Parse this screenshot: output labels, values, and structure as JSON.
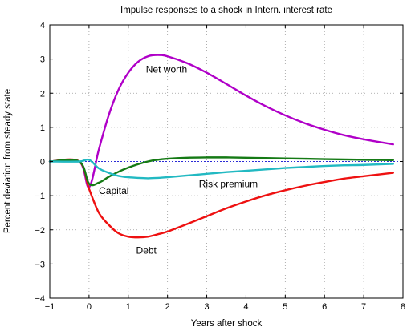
{
  "chart_data": {
    "type": "line",
    "title": "Impulse responses to a shock in Intern. interest rate",
    "xlabel": "Years after shock",
    "ylabel": "Percent deviation from steady state",
    "xlim": [
      -1,
      8
    ],
    "ylim": [
      -4,
      4
    ],
    "xticks": [
      -1,
      0,
      1,
      2,
      3,
      4,
      5,
      6,
      7,
      8
    ],
    "yticks": [
      -4,
      -3,
      -2,
      -1,
      0,
      1,
      2,
      3,
      4
    ],
    "grid": true,
    "baseline": {
      "y": 0,
      "color": "#2b2bd6",
      "style": "dotted"
    },
    "series": [
      {
        "name": "Net worth",
        "color": "#b000c8",
        "x": [
          -1,
          -0.25,
          0,
          0.25,
          0.5,
          0.75,
          1,
          1.25,
          1.5,
          1.75,
          2,
          2.5,
          3,
          3.5,
          4,
          4.5,
          5,
          5.5,
          6,
          6.5,
          7,
          7.75
        ],
        "y": [
          0,
          0,
          -0.75,
          0.35,
          1.35,
          2.1,
          2.6,
          2.92,
          3.08,
          3.12,
          3.08,
          2.88,
          2.6,
          2.27,
          1.93,
          1.62,
          1.35,
          1.12,
          0.93,
          0.77,
          0.65,
          0.5
        ]
      },
      {
        "name": "Debt",
        "color": "#ee1111",
        "x": [
          -1,
          -0.25,
          0,
          0.25,
          0.5,
          0.75,
          1,
          1.25,
          1.5,
          1.75,
          2,
          2.5,
          3,
          3.5,
          4,
          4.5,
          5,
          5.5,
          6,
          6.5,
          7,
          7.75
        ],
        "y": [
          0,
          0,
          -0.8,
          -1.5,
          -1.85,
          -2.1,
          -2.2,
          -2.22,
          -2.2,
          -2.13,
          -2.05,
          -1.83,
          -1.6,
          -1.37,
          -1.17,
          -0.99,
          -0.84,
          -0.71,
          -0.6,
          -0.5,
          -0.43,
          -0.33
        ]
      },
      {
        "name": "Capital",
        "color": "#157a15",
        "x": [
          -1,
          -0.25,
          0,
          0.25,
          0.5,
          0.75,
          1,
          1.25,
          1.5,
          1.75,
          2,
          2.5,
          3,
          3.5,
          4,
          4.5,
          5,
          5.5,
          6,
          6.5,
          7,
          7.75
        ],
        "y": [
          0,
          0,
          -0.65,
          -0.62,
          -0.45,
          -0.3,
          -0.18,
          -0.08,
          0.0,
          0.05,
          0.08,
          0.11,
          0.12,
          0.12,
          0.11,
          0.1,
          0.09,
          0.08,
          0.07,
          0.06,
          0.05,
          0.04
        ]
      },
      {
        "name": "Risk premium",
        "color": "#22b9c2",
        "x": [
          -1,
          -0.25,
          0,
          0.25,
          0.5,
          0.75,
          1,
          1.25,
          1.5,
          1.75,
          2,
          2.5,
          3,
          3.5,
          4,
          4.5,
          5,
          5.5,
          6,
          6.5,
          7,
          7.75
        ],
        "y": [
          0,
          0,
          0.05,
          -0.2,
          -0.33,
          -0.42,
          -0.46,
          -0.48,
          -0.49,
          -0.48,
          -0.46,
          -0.41,
          -0.36,
          -0.31,
          -0.27,
          -0.23,
          -0.19,
          -0.16,
          -0.13,
          -0.11,
          -0.1,
          -0.07
        ]
      }
    ],
    "annotations": [
      {
        "text": "Net worth",
        "x": 1.45,
        "y": 2.6
      },
      {
        "text": "Capital",
        "x": 0.25,
        "y": -0.95
      },
      {
        "text": "Risk premium",
        "x": 2.8,
        "y": -0.75
      },
      {
        "text": "Debt",
        "x": 1.2,
        "y": -2.7
      }
    ]
  }
}
